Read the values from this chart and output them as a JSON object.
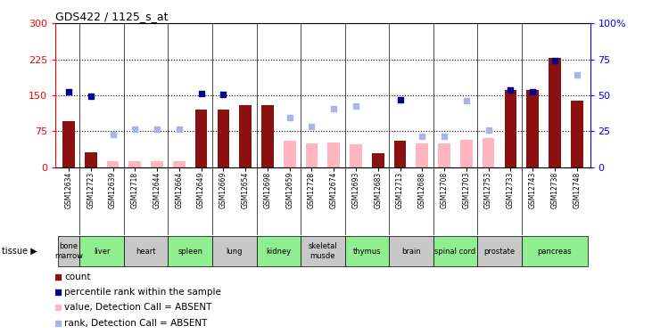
{
  "title": "GDS422 / 1125_s_at",
  "samples": [
    "GSM12634",
    "GSM12723",
    "GSM12639",
    "GSM12718",
    "GSM12644",
    "GSM12664",
    "GSM12649",
    "GSM12669",
    "GSM12654",
    "GSM12698",
    "GSM12659",
    "GSM12728",
    "GSM12674",
    "GSM12693",
    "GSM12683",
    "GSM12713",
    "GSM12688",
    "GSM12708",
    "GSM12703",
    "GSM12753",
    "GSM12733",
    "GSM12743",
    "GSM12738",
    "GSM12748"
  ],
  "tissues": [
    {
      "name": "bone\nmarrow",
      "start": 0,
      "end": 1,
      "color": "#c8c8c8"
    },
    {
      "name": "liver",
      "start": 1,
      "end": 3,
      "color": "#90ee90"
    },
    {
      "name": "heart",
      "start": 3,
      "end": 5,
      "color": "#c8c8c8"
    },
    {
      "name": "spleen",
      "start": 5,
      "end": 7,
      "color": "#90ee90"
    },
    {
      "name": "lung",
      "start": 7,
      "end": 9,
      "color": "#c8c8c8"
    },
    {
      "name": "kidney",
      "start": 9,
      "end": 11,
      "color": "#90ee90"
    },
    {
      "name": "skeletal\nmusde",
      "start": 11,
      "end": 13,
      "color": "#c8c8c8"
    },
    {
      "name": "thymus",
      "start": 13,
      "end": 15,
      "color": "#90ee90"
    },
    {
      "name": "brain",
      "start": 15,
      "end": 17,
      "color": "#c8c8c8"
    },
    {
      "name": "spinal cord",
      "start": 17,
      "end": 19,
      "color": "#90ee90"
    },
    {
      "name": "prostate",
      "start": 19,
      "end": 21,
      "color": "#c8c8c8"
    },
    {
      "name": "pancreas",
      "start": 21,
      "end": 24,
      "color": "#90ee90"
    }
  ],
  "bars_present": [
    95,
    30,
    0,
    0,
    0,
    0,
    120,
    120,
    130,
    130,
    0,
    0,
    0,
    0,
    28,
    55,
    0,
    0,
    0,
    0,
    160,
    160,
    228,
    138
  ],
  "bars_absent": [
    0,
    0,
    13,
    13,
    13,
    13,
    0,
    0,
    0,
    0,
    55,
    50,
    52,
    48,
    0,
    0,
    50,
    50,
    57,
    60,
    0,
    0,
    0,
    0
  ],
  "scatter_present": [
    157,
    148,
    null,
    null,
    null,
    null,
    153,
    152,
    null,
    null,
    null,
    null,
    null,
    null,
    null,
    140,
    null,
    null,
    null,
    null,
    160,
    158,
    222,
    null
  ],
  "scatter_absent": [
    null,
    null,
    68,
    80,
    80,
    80,
    null,
    null,
    null,
    null,
    104,
    84,
    122,
    127,
    null,
    null,
    65,
    65,
    138,
    78,
    null,
    null,
    null,
    192
  ],
  "ylim_left": [
    0,
    300
  ],
  "ylim_right": [
    0,
    100
  ],
  "yticks_left": [
    0,
    75,
    150,
    225,
    300
  ],
  "yticks_right": [
    0,
    25,
    50,
    75,
    100
  ],
  "hlines": [
    75,
    150,
    225
  ],
  "bar_color_present": "#8b1010",
  "bar_color_absent": "#ffb6c1",
  "scatter_color_present": "#00008b",
  "scatter_color_absent": "#aab4e8",
  "legend_items": [
    {
      "color": "#8b1010",
      "label": "count"
    },
    {
      "color": "#00008b",
      "label": "percentile rank within the sample"
    },
    {
      "color": "#ffb6c1",
      "label": "value, Detection Call = ABSENT"
    },
    {
      "color": "#aab4e8",
      "label": "rank, Detection Call = ABSENT"
    }
  ]
}
